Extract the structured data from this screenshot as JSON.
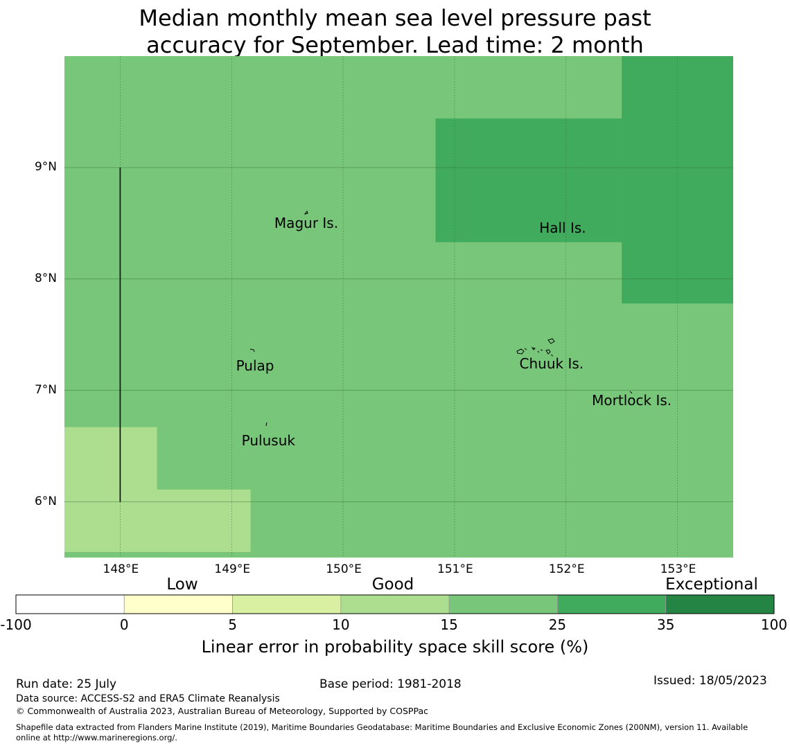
{
  "title": {
    "line1": "Median monthly mean sea level pressure past",
    "line2": "accuracy for September. Lead time: 2 month"
  },
  "map": {
    "lon_range": [
      147.5,
      153.5
    ],
    "lat_range": [
      5.5,
      10.0
    ],
    "lat_ticks": [
      {
        "value": 9,
        "label": "9°N"
      },
      {
        "value": 8,
        "label": "8°N"
      },
      {
        "value": 7,
        "label": "7°N"
      },
      {
        "value": 6,
        "label": "6°N"
      }
    ],
    "lon_ticks": [
      {
        "value": 148,
        "label": "148°E"
      },
      {
        "value": 149,
        "label": "149°E"
      },
      {
        "value": 150,
        "label": "150°E"
      },
      {
        "value": 151,
        "label": "151°E"
      },
      {
        "value": 152,
        "label": "152°E"
      },
      {
        "value": 153,
        "label": "153°E"
      }
    ],
    "base_color": "#78c679",
    "skill_regions": [
      {
        "category": "15-25",
        "color": "#78c679",
        "lon": [
          147.5,
          153.5
        ],
        "lat": [
          5.5,
          10.0
        ]
      },
      {
        "category": "10-15",
        "color": "#addd8e",
        "lon": [
          147.5,
          148.33
        ],
        "lat": [
          5.55,
          6.67
        ]
      },
      {
        "category": "10-15",
        "color": "#addd8e",
        "lon": [
          147.5,
          149.17
        ],
        "lat": [
          5.55,
          6.11
        ]
      },
      {
        "category": "25-35",
        "color": "#41ab5d",
        "lon": [
          150.83,
          152.5
        ],
        "lat": [
          8.33,
          9.44
        ]
      },
      {
        "category": "25-35",
        "color": "#41ab5d",
        "lon": [
          152.5,
          153.5
        ],
        "lat": [
          7.78,
          10.0
        ]
      }
    ],
    "boundary_line": {
      "lon": 148.0,
      "lat": [
        6.0,
        9.0
      ]
    },
    "places": [
      {
        "name": "Magur Is.",
        "lon": 149.67,
        "lat": 8.5
      },
      {
        "name": "Hall Is.",
        "lon": 151.97,
        "lat": 8.46
      },
      {
        "name": "Pulap",
        "lon": 149.21,
        "lat": 7.22
      },
      {
        "name": "Chuuk Is.",
        "lon": 151.87,
        "lat": 7.24
      },
      {
        "name": "Mortlock Is.",
        "lon": 152.59,
        "lat": 6.91
      },
      {
        "name": "Pulusuk",
        "lon": 149.33,
        "lat": 6.55
      }
    ]
  },
  "colorbar": {
    "categories": [
      "Low",
      "Good",
      "Exceptional"
    ],
    "ticks": [
      "-100",
      "0",
      "5",
      "10",
      "15",
      "25",
      "35",
      "100"
    ],
    "colors": [
      "#ffffff",
      "#ffffcc",
      "#d9f0a3",
      "#addd8e",
      "#78c679",
      "#41ab5d",
      "#238443"
    ],
    "title": "Linear error in probability space skill score (%)"
  },
  "footer": {
    "run_date": "Run date: 25 July",
    "base_period": "Base period: 1981-2018",
    "issued": "Issued: 18/05/2023",
    "data_source": "Data source: ACCESS-S2 and ERA5 Climate Reanalysis",
    "copyright": "© Commonwealth of Australia 2023, Australian Bureau of Meteorology, Supported by COSPPac",
    "shapefile_line1": "Shapefile data extracted from Flanders Marine Institute (2019), Maritime Boundaries Geodatabase: Maritime Boundaries and Exclusive Economic Zones (200NM), version 11. Available",
    "shapefile_line2": "online at http://www.marineregions.org/."
  }
}
